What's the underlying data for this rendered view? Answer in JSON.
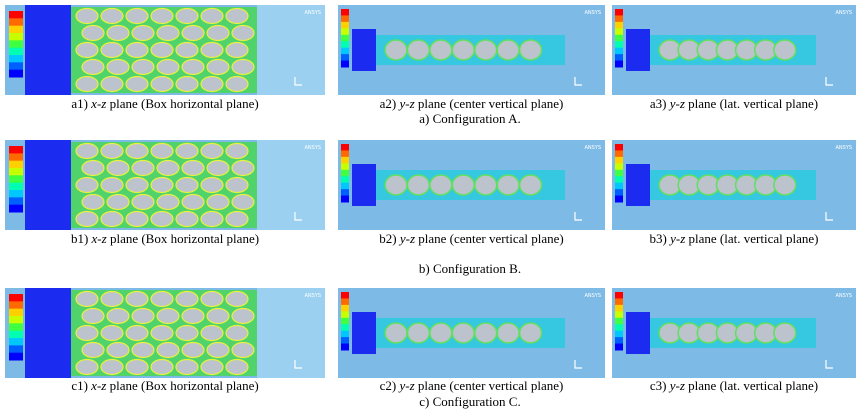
{
  "logo": "ANSYS",
  "rows": [
    {
      "panels": [
        {
          "label": "a1)",
          "plane": "x-z",
          "text": "plane (Box horizontal plane)"
        },
        {
          "label": "a2)",
          "plane": "y-z",
          "text": "plane (center vertical plane)"
        },
        {
          "label": "a3)",
          "plane": "y-z",
          "text": "plane (lat. vertical plane)"
        }
      ],
      "caption": "a) Configuration A."
    },
    {
      "panels": [
        {
          "label": "b1)",
          "plane": "x-z",
          "text": "plane (Box horizontal plane)"
        },
        {
          "label": "b2)",
          "plane": "y-z",
          "text": "plane (center vertical plane)"
        },
        {
          "label": "b3)",
          "plane": "y-z",
          "text": "plane (lat. vertical plane)"
        }
      ],
      "caption": "b) Configuration B."
    },
    {
      "panels": [
        {
          "label": "c1)",
          "plane": "x-z",
          "text": "plane (Box horizontal plane)"
        },
        {
          "label": "c2)",
          "plane": "y-z",
          "text": "plane (center vertical plane)"
        },
        {
          "label": "c3)",
          "plane": "y-z",
          "text": "plane (lat. vertical plane)"
        }
      ],
      "caption": "c) Configuration C."
    }
  ]
}
